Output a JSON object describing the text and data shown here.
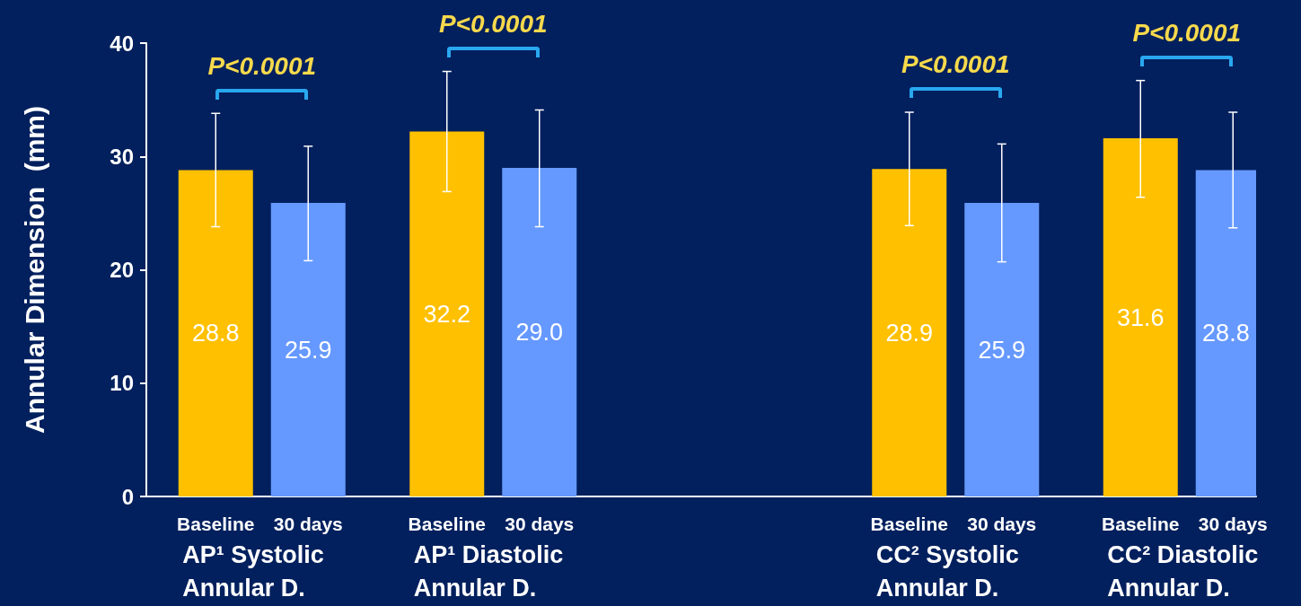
{
  "chart_data": {
    "type": "bar",
    "ylabel": "Annular Dimension  (mm)",
    "categories": [
      null,
      "Baseline",
      null,
      "30 days",
      null,
      null,
      "Baseline",
      null,
      "30 days",
      null,
      null,
      null,
      null,
      null,
      null,
      null,
      "Baseline",
      null,
      "30 days",
      null,
      null,
      "Baseline",
      null,
      "30 days"
    ],
    "values": [
      null,
      28.8,
      null,
      25.9,
      null,
      null,
      32.2,
      null,
      29.0,
      null,
      null,
      null,
      null,
      null,
      null,
      null,
      28.9,
      null,
      25.9,
      null,
      null,
      31.6,
      null,
      28.8
    ],
    "colors": [
      null,
      "#ffc000",
      null,
      "#6699ff",
      null,
      null,
      "#ffc000",
      null,
      "#6699ff",
      null,
      null,
      null,
      null,
      null,
      null,
      null,
      "#ffc000",
      null,
      "#6699ff",
      null,
      null,
      "#ffc000",
      null,
      "#6699ff"
    ],
    "errors": [
      null,
      [
        23.8,
        33.8
      ],
      null,
      [
        20.8,
        30.9
      ],
      null,
      null,
      [
        26.9,
        37.5
      ],
      null,
      [
        23.8,
        34.1
      ],
      null,
      null,
      null,
      null,
      null,
      null,
      null,
      [
        23.9,
        33.9
      ],
      null,
      [
        20.7,
        31.1
      ],
      null,
      null,
      [
        26.4,
        36.7
      ],
      null,
      [
        23.7,
        33.9
      ]
    ],
    "value_labels": [
      null,
      "28.8",
      null,
      "25.9",
      null,
      null,
      "32.2",
      null,
      "29.0",
      null,
      null,
      null,
      null,
      null,
      null,
      null,
      "28.9",
      null,
      "25.9",
      null,
      null,
      "31.6",
      null,
      "28.8"
    ],
    "ylim": [
      0,
      40
    ],
    "yticks": [
      0,
      10,
      20,
      30,
      40
    ],
    "grid": false,
    "annotations": [
      "P<0.0001",
      "P<0.0001",
      "P<0.0001",
      "P<0.0001",
      "AP¹ Systolic Annular D.",
      "AP¹ Diastolic Annular D.",
      "CC² Systolic Annular D.",
      "CC² Diastolic Annular D."
    ]
  }
}
